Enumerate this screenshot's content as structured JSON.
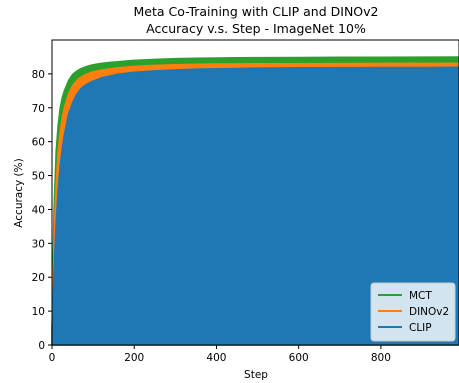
{
  "chart_data": {
    "type": "area",
    "title": "Meta Co-Training with CLIP and DINOv2",
    "subtitle": "Accuracy v.s. Step - ImageNet 10%",
    "xlabel": "Step",
    "ylabel": "Accuracy (%)",
    "xlim": [
      0,
      990
    ],
    "ylim": [
      0,
      90
    ],
    "xticks": [
      0,
      200,
      400,
      600,
      800
    ],
    "yticks": [
      0,
      10,
      20,
      30,
      40,
      50,
      60,
      70,
      80
    ],
    "legend": "lower-right",
    "grid": false,
    "x": [
      0,
      5,
      10,
      15,
      20,
      25,
      30,
      40,
      50,
      60,
      70,
      80,
      90,
      100,
      120,
      140,
      160,
      180,
      200,
      250,
      300,
      350,
      400,
      450,
      500,
      600,
      700,
      800,
      900,
      990
    ],
    "series": [
      {
        "name": "MCT",
        "color": "#2ca02c",
        "values": [
          5,
          40,
          57,
          65,
          70,
          73,
          75,
          78,
          79.8,
          80.8,
          81.5,
          82,
          82.4,
          82.7,
          83.1,
          83.4,
          83.6,
          83.8,
          84,
          84.3,
          84.5,
          84.6,
          84.7,
          84.75,
          84.8,
          84.85,
          84.9,
          84.9,
          84.95,
          85
        ]
      },
      {
        "name": "DINOv2",
        "color": "#ff7f0e",
        "values": [
          5,
          30,
          47,
          57,
          63,
          67,
          70,
          74,
          76.5,
          78,
          79,
          79.7,
          80.2,
          80.6,
          81.1,
          81.5,
          81.8,
          82,
          82.2,
          82.5,
          82.7,
          82.8,
          82.9,
          82.95,
          83,
          83,
          83.05,
          83.1,
          83.1,
          83.1
        ]
      },
      {
        "name": "CLIP",
        "color": "#1f77b4",
        "values": [
          4,
          22,
          36,
          46,
          53,
          58,
          62,
          68,
          71.5,
          74,
          75.6,
          76.6,
          77.3,
          77.9,
          78.8,
          79.4,
          79.9,
          80.2,
          80.5,
          80.9,
          81.2,
          81.4,
          81.5,
          81.6,
          81.7,
          81.8,
          81.85,
          81.9,
          81.9,
          81.95
        ]
      }
    ]
  }
}
